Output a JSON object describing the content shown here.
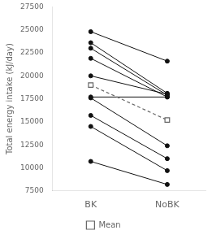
{
  "chart_data": {
    "type": "line",
    "categories": [
      "BK",
      "NoBK"
    ],
    "ylabel": "Total energy intake (kJ/day)",
    "ylim": [
      7500,
      27500
    ],
    "yticks": [
      7500,
      10000,
      12500,
      15000,
      17500,
      20000,
      22500,
      25000,
      27500
    ],
    "grid": false,
    "legend": "bottom",
    "series": [
      {
        "color": "#111111",
        "marker": "circle",
        "values": [
          24800,
          21600
        ]
      },
      {
        "color": "#111111",
        "marker": "circle",
        "values": [
          23600,
          18100
        ]
      },
      {
        "color": "#111111",
        "marker": "circle",
        "values": [
          23000,
          17900
        ]
      },
      {
        "color": "#111111",
        "marker": "circle",
        "values": [
          21900,
          17700
        ]
      },
      {
        "color": "#111111",
        "marker": "circle",
        "values": [
          20000,
          18000
        ]
      },
      {
        "color": "#111111",
        "marker": "circle",
        "values": [
          17700,
          17700
        ]
      },
      {
        "color": "#111111",
        "marker": "circle",
        "values": [
          17600,
          12400
        ]
      },
      {
        "color": "#111111",
        "marker": "circle",
        "values": [
          15700,
          11000
        ]
      },
      {
        "color": "#111111",
        "marker": "circle",
        "values": [
          14500,
          9700
        ]
      },
      {
        "color": "#111111",
        "marker": "circle",
        "values": [
          10700,
          8200
        ]
      },
      {
        "name": "Mean",
        "color": "#666666",
        "marker": "square",
        "line_style": "dashed",
        "values": [
          19000,
          15200
        ]
      }
    ]
  }
}
